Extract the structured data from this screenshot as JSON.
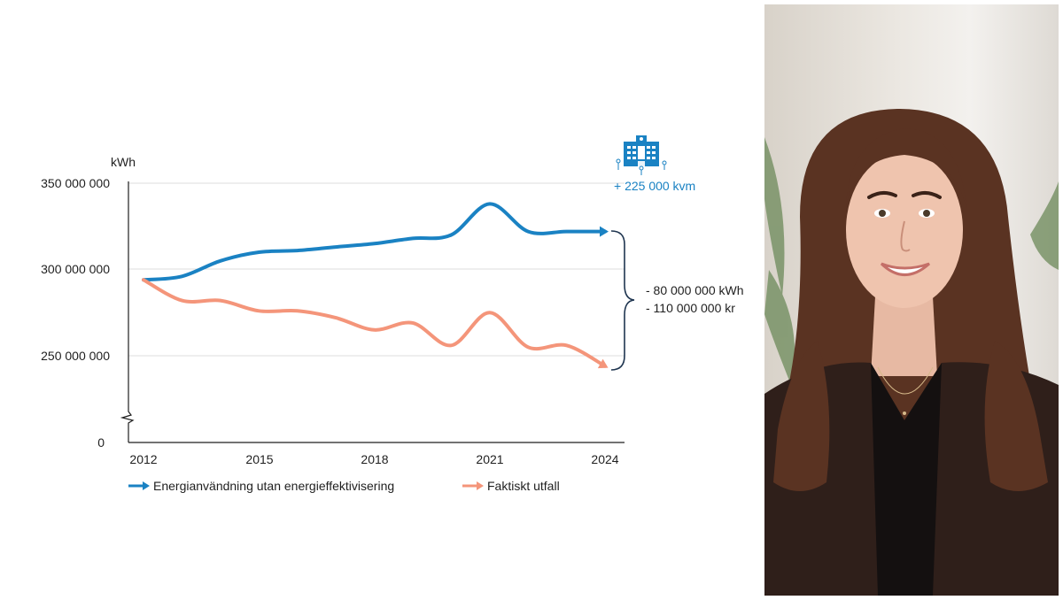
{
  "chart_data": {
    "type": "line",
    "ylabel": "kWh",
    "ylim": [
      0,
      350000000
    ],
    "y_ticks": [
      "350 000 000",
      "300 000 000",
      "250 000 000",
      "0"
    ],
    "x_ticks": [
      "2012",
      "2015",
      "2018",
      "2021",
      "2024"
    ],
    "x": [
      2012,
      2013,
      2014,
      2015,
      2016,
      2017,
      2018,
      2019,
      2020,
      2021,
      2022,
      2023,
      2024
    ],
    "series": [
      {
        "name": "Energianvändning utan energieffektivisering",
        "color": "#1a82c3",
        "values": [
          294000000,
          296000000,
          305000000,
          310000000,
          311000000,
          313000000,
          315000000,
          318000000,
          320000000,
          338000000,
          322000000,
          322000000,
          322000000
        ]
      },
      {
        "name": "Faktiskt utfall",
        "color": "#f4957a",
        "values": [
          294000000,
          282000000,
          282000000,
          276000000,
          276000000,
          272000000,
          265000000,
          269000000,
          256000000,
          275000000,
          255000000,
          256000000,
          244000000
        ]
      }
    ],
    "grid": true,
    "axis_break": true,
    "legend": "bottom"
  },
  "annotations": {
    "savings_kwh": "- 80 000 000 kWh",
    "savings_kr": "- 110 000 000 kr",
    "area_added": "+ 225 000 kvm",
    "building_icon": "hospital-building-icon"
  },
  "photo": {
    "description_icon": "portrait-photo"
  },
  "colors": {
    "blue": "#1a82c3",
    "salmon": "#f4957a",
    "dark": "#1f3550"
  }
}
